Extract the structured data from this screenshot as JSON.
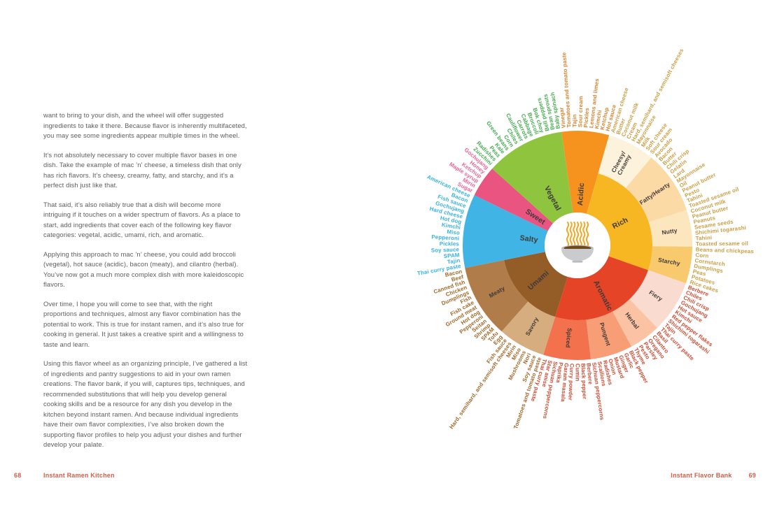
{
  "left_page": {
    "paragraphs": [
      "want to bring to your dish, and the wheel will offer suggested ingredients to take it there. Because flavor is inherently multifaceted, you may see some ingredients appear multiple times in the wheel.",
      "It’s not absolutely necessary to cover multiple flavor bases in one dish. Take the example of mac ’n’ cheese, a timeless dish that only has rich flavors. It’s cheesy, creamy, fatty, and starchy, and it’s a perfect dish just like that.",
      "That said, it’s also reliably true that a dish will become more intriguing if it touches on a wider spectrum of flavors. As a place to start, add ingredients that cover each of the following key flavor categories: vegetal, acidic, umami, rich, and aromatic.",
      "Applying this approach to mac ’n’ cheese, you could add broccoli (vegetal), hot sauce (acidic), bacon (meaty), and cilantro (herbal). You’ve now got a much more complex dish with more kaleidoscopic flavors.",
      "Over time, I hope you will come to see that, with the right proportions and techniques, almost any flavor combination has the potential to work. This is true for instant ramen, and it’s also true for cooking in general. It just takes a creative spirit and a willingness to taste and learn.",
      "Using this flavor wheel as an organizing principle, I’ve gathered a list of ingredients and pantry suggestions to aid in your own ramen creations. The flavor bank, if you will, captures tips, techniques, and recommended substitutions that will help you develop general cooking skills and be a resource for any dish you develop in the kitchen beyond instant ramen. And because individual ingredients have their own flavor complexities, I’ve also broken down the supporting flavor profiles to help you adjust your dishes and further develop your palate."
    ],
    "footer": {
      "page_number": "68",
      "label": "Instant Ramen Kitchen"
    }
  },
  "right_page": {
    "footer": {
      "label": "Instant Flavor Bank",
      "page_number": "69"
    },
    "wheel": {
      "center_icon": "ramen-bowl-icon",
      "sections": [
        {
          "label": "Acidic",
          "items": [
            "Hot sauce",
            "Ketchup",
            "Kimchi",
            "Lemons and limes",
            "Pickles",
            "Sour cream",
            "Tajin",
            "Tomatoes and tomato paste",
            "Vinegar"
          ]
        },
        {
          "label": "Rich",
          "subsections": [
            {
              "label": "Cheesy/Creamy",
              "items": [
                "American cheese",
                "Butter",
                "Coconut milk",
                "Cream",
                "Hard, semihard, and semisoft cheeses",
                "Mayonnaise",
                "Milk",
                "Soft cheese",
                "Sour cream"
              ]
            },
            {
              "label": "Fatty/Hearty",
              "items": [
                "Avocado",
                "Bacon",
                "Butter",
                "Chili crisp",
                "Gelatin",
                "Lard",
                "Mayonnaise",
                "Oil",
                "Peanut butter",
                "Pesto",
                "Tahini",
                "Toasted sesame oil"
              ]
            },
            {
              "label": "Nutty",
              "items": [
                "Coconut milk",
                "Peanut butter",
                "Peanuts",
                "Sesame seeds",
                "Shichimi togarashi",
                "Tahini",
                "Toasted sesame oil"
              ]
            },
            {
              "label": "Starchy",
              "items": [
                "Beans and chickpeas",
                "Corn",
                "Cornstarch",
                "Dumplings",
                "Peas",
                "Potatoes",
                "Rice cakes"
              ]
            }
          ]
        },
        {
          "label": "Aromatic",
          "subsections": [
            {
              "label": "Fiery",
              "items": [
                "Berbere",
                "Chiles",
                "Chili crisp",
                "Gochujang",
                "Hot sauce",
                "Kimchi",
                "Red pepper flakes",
                "Shichimi togarashi",
                "Tajin",
                "Thai curry paste"
              ]
            },
            {
              "label": "Herbal",
              "items": [
                "Basil",
                "Cilantro",
                "Oregano",
                "Parsley",
                "Pesto",
                "Thyme"
              ]
            },
            {
              "label": "Pungent",
              "items": [
                "Black pepper",
                "Garlic",
                "Ginger",
                "Mustard",
                "Onion",
                "Radishes",
                "Scallions",
                "Sichuan peppercorns"
              ]
            },
            {
              "label": "Spiced",
              "items": [
                "Berbere",
                "Black pepper",
                "Cumin",
                "Curry powder",
                "Garam masala",
                "Paprika",
                "Sichuan peppercorns",
                "Star anise",
                "Thai curry paste"
              ]
            }
          ]
        },
        {
          "label": "Umami",
          "subsections": [
            {
              "label": "Savory",
              "items": [
                "Egg",
                "Fish sauce",
                "Hard, semihard, and semisoft cheeses",
                "Mirin",
                "Miso",
                "Mushrooms",
                "Nori",
                "Soy sauce",
                "Tomatoes and tomato paste"
              ]
            },
            {
              "label": "Meaty",
              "items": [
                "Bacon",
                "Beef",
                "Canned fish",
                "Chicken",
                "Dumplings",
                "Fish",
                "Fish cake",
                "Ground meat",
                "Hot dog",
                "Pepperoni",
                "Seitan",
                "Shrimp",
                "SPAM",
                "Tofu"
              ]
            }
          ]
        },
        {
          "label": "Salty",
          "items": [
            "American cheese",
            "Bacon",
            "Fish sauce",
            "Gochujang",
            "Hard cheese",
            "Hot dog",
            "Kimchi",
            "Miso",
            "Pepperoni",
            "Pickles",
            "Soy sauce",
            "SPAM",
            "Tajin",
            "Thai curry paste"
          ]
        },
        {
          "label": "Sweet",
          "items": [
            "Gochujang",
            "Honey",
            "Ketchup",
            "Maple syrup",
            "Mirin",
            "Sugar"
          ]
        },
        {
          "label": "Vegetal",
          "items": [
            "Baby spinach",
            "Bean sprouts",
            "Bell peppers",
            "Bok choy",
            "Broccoli",
            "Cabbage",
            "Carrots",
            "Cauliflower",
            "Chiles",
            "Corn",
            "Green beans",
            "Kale",
            "Peas",
            "Radishes",
            "Zucchini"
          ]
        }
      ],
      "colors": {
        "acidic": "#f6921e",
        "rich": "#f7b723",
        "aromatic": "#e64427",
        "umami": "#945d28",
        "salty": "#3fb4e5",
        "sweet": "#ea5480",
        "vegetal": "#8fc43f",
        "cheesy_creamy": "#fdf3dc",
        "fatty_hearty": "#fcdaa5",
        "nutty": "#fbe6bd",
        "starchy": "#f8c96d",
        "fiery": "#fadbd0",
        "herbal": "#fbc3a3",
        "pungent": "#f79e77",
        "spiced": "#f3714c",
        "savory": "#d6ad7f",
        "meaty": "#b07c49",
        "wedge_label": "#3e3a39",
        "item_text_vegetal": "#46ab4f",
        "item_text_acidic": "#d5832f",
        "item_text_rich": "#c99f45",
        "item_text_aromatic": "#cd4b32",
        "item_text_umami": "#a06828",
        "item_text_salty": "#35b1e2",
        "item_text_sweet": "#ee6292",
        "footer_accent": "#d05f4b",
        "body_text": "#5d5d60"
      }
    }
  }
}
